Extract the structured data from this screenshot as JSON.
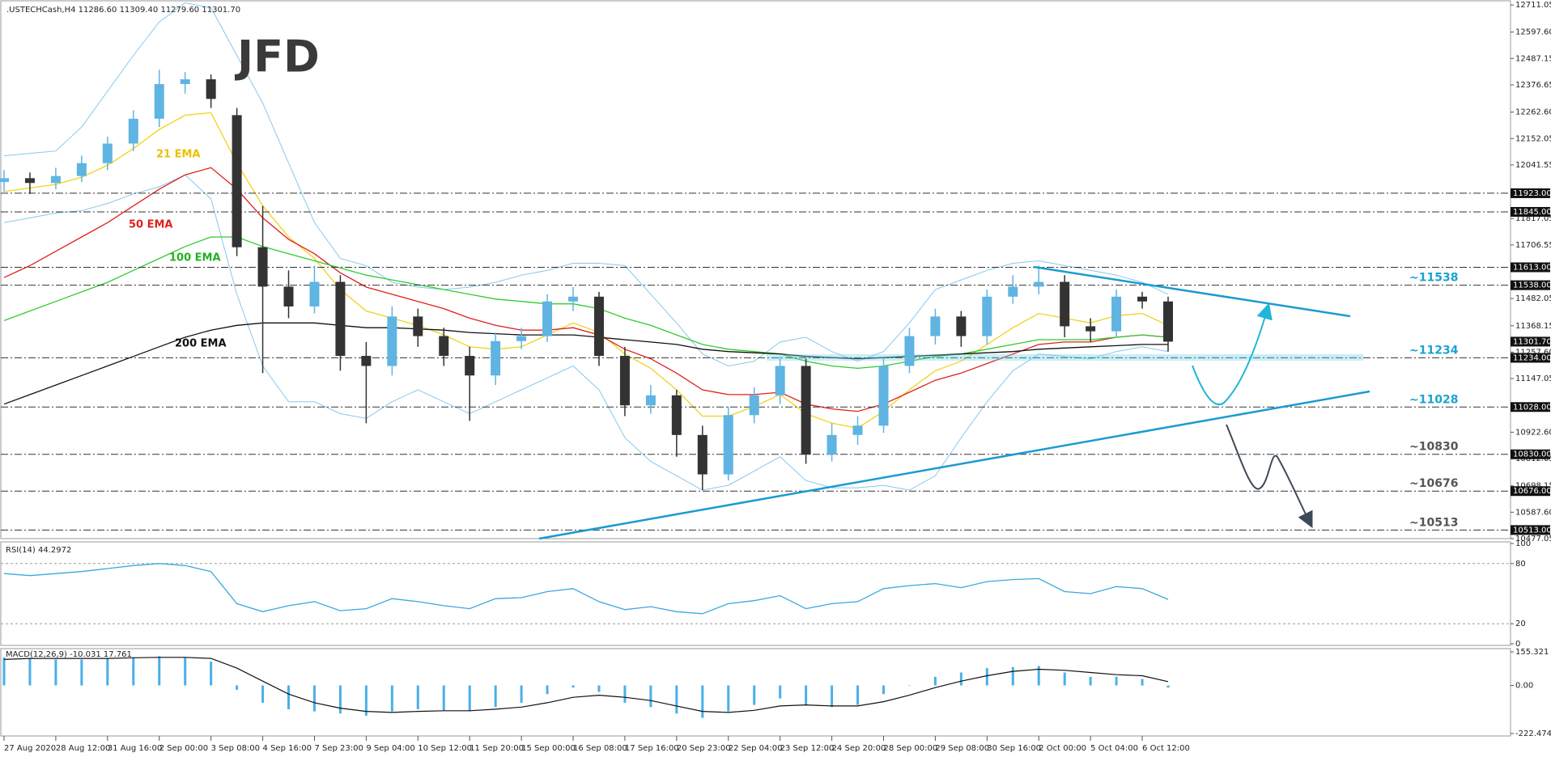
{
  "chart_data": [
    {
      "type": "candlestick",
      "title": ".USTECHCash,H4  11286.60 11309.40 11279.60 11301.70",
      "logo": "JFD",
      "x": [
        "27 Aug 2020",
        null,
        "28 Aug 12:00",
        null,
        "31 Aug 16:00",
        null,
        "2 Sep 00:00",
        null,
        "3 Sep 08:00",
        null,
        "4 Sep 16:00",
        null,
        "7 Sep 23:00",
        null,
        "9 Sep 04:00",
        null,
        "10 Sep 12:00",
        null,
        "11 Sep 20:00",
        null,
        "15 Sep 00:00",
        null,
        "16 Sep 08:00",
        null,
        "17 Sep 16:00",
        null,
        "20 Sep 23:00",
        null,
        "22 Sep 04:00",
        null,
        "23 Sep 12:00",
        null,
        "24 Sep 20:00",
        null,
        "28 Sep 00:00",
        null,
        "29 Sep 08:00",
        null,
        "30 Sep 16:00",
        null,
        "2 Oct 00:00",
        null,
        "5 Oct 04:00",
        null,
        "6 Oct 12:00",
        null
      ],
      "open": [
        11970,
        11986,
        11966,
        11995,
        12049,
        12131,
        12235,
        12380,
        12400,
        12250,
        11697,
        11532,
        11449,
        11552,
        11242,
        11200,
        11407,
        11325,
        11242,
        11160,
        11304,
        11325,
        11470,
        11490,
        11242,
        11035,
        11077,
        10911,
        10746,
        10994,
        11077,
        11200,
        10829,
        10911,
        10950,
        11200,
        11325,
        11407,
        11325,
        11490,
        11532,
        11552,
        11366,
        11345,
        11490,
        11470
      ],
      "high": [
        12020,
        12010,
        12030,
        12080,
        12160,
        12270,
        12440,
        12430,
        12420,
        12280,
        11870,
        11600,
        11620,
        11580,
        11300,
        11450,
        11440,
        11360,
        11280,
        11340,
        11360,
        11500,
        11530,
        11510,
        11280,
        11120,
        11100,
        10950,
        11030,
        11110,
        11240,
        11230,
        10960,
        10990,
        11230,
        11360,
        11440,
        11430,
        11520,
        11580,
        11620,
        11580,
        11400,
        11520,
        11510,
        11490
      ],
      "low": [
        11930,
        11920,
        11940,
        11970,
        12020,
        12100,
        12200,
        12340,
        12280,
        11660,
        11170,
        11400,
        11420,
        11180,
        10960,
        11160,
        11280,
        11200,
        10970,
        11120,
        11270,
        11300,
        11430,
        11200,
        10990,
        11000,
        10820,
        10680,
        10720,
        10960,
        11040,
        10790,
        10800,
        10870,
        10920,
        11170,
        11290,
        11280,
        11290,
        11460,
        11500,
        11320,
        11300,
        11320,
        11440,
        11260
      ],
      "close": [
        11986,
        11966,
        11995,
        12049,
        12131,
        12235,
        12380,
        12400,
        12318,
        11697,
        11532,
        11449,
        11552,
        11242,
        11200,
        11407,
        11325,
        11242,
        11160,
        11304,
        11325,
        11470,
        11490,
        11242,
        11035,
        11077,
        10911,
        10746,
        10994,
        11077,
        11200,
        10829,
        10911,
        10950,
        11200,
        11325,
        11407,
        11325,
        11490,
        11532,
        11552,
        11366,
        11345,
        11490,
        11470,
        11301.7
      ],
      "up_color": "#5fb4e2",
      "down_color": "#333333",
      "bands": {
        "color": "#86c8ee",
        "upper": [
          12080,
          12090,
          12100,
          12200,
          12350,
          12500,
          12640,
          12720,
          12700,
          12500,
          12300,
          12050,
          11800,
          11650,
          11620,
          11550,
          11530,
          11520,
          11530,
          11550,
          11580,
          11600,
          11630,
          11630,
          11620,
          11500,
          11380,
          11250,
          11200,
          11220,
          11300,
          11320,
          11260,
          11220,
          11260,
          11380,
          11520,
          11560,
          11600,
          11630,
          11640,
          11620,
          11600,
          11580,
          11550,
          11500
        ],
        "lower": [
          11800,
          11820,
          11840,
          11850,
          11880,
          11920,
          11950,
          12000,
          11900,
          11500,
          11200,
          11050,
          11050,
          11000,
          10980,
          11050,
          11100,
          11050,
          11000,
          11050,
          11100,
          11150,
          11200,
          11100,
          10900,
          10800,
          10740,
          10680,
          10700,
          10760,
          10820,
          10720,
          10690,
          10690,
          10700,
          10680,
          10740,
          10900,
          11050,
          11180,
          11250,
          11240,
          11230,
          11260,
          11280,
          11260
        ]
      },
      "series": [
        {
          "name": "21 EMA",
          "color": "#f2d21b",
          "values": [
            11930,
            11945,
            11960,
            11990,
            12040,
            12110,
            12190,
            12250,
            12260,
            12050,
            11870,
            11740,
            11650,
            11520,
            11430,
            11400,
            11370,
            11330,
            11280,
            11270,
            11280,
            11330,
            11380,
            11340,
            11250,
            11190,
            11100,
            10990,
            10990,
            11030,
            11080,
            11000,
            10960,
            10940,
            11010,
            11100,
            11180,
            11220,
            11290,
            11360,
            11420,
            11400,
            11380,
            11410,
            11420,
            11370
          ]
        },
        {
          "name": "50 EMA",
          "color": "#e0201b",
          "values": [
            11570,
            11620,
            11680,
            11740,
            11800,
            11870,
            11940,
            12000,
            12030,
            11940,
            11820,
            11730,
            11670,
            11590,
            11530,
            11500,
            11470,
            11440,
            11400,
            11370,
            11350,
            11350,
            11360,
            11330,
            11270,
            11230,
            11170,
            11100,
            11080,
            11080,
            11090,
            11040,
            11020,
            11010,
            11040,
            11090,
            11140,
            11170,
            11210,
            11250,
            11290,
            11300,
            11300,
            11320,
            11330,
            11320
          ]
        },
        {
          "name": "100 EMA",
          "color": "#2fcc2f",
          "values": [
            11390,
            11430,
            11470,
            11510,
            11550,
            11600,
            11650,
            11700,
            11740,
            11740,
            11700,
            11670,
            11640,
            11610,
            11580,
            11560,
            11540,
            11520,
            11500,
            11480,
            11470,
            11460,
            11460,
            11440,
            11400,
            11370,
            11330,
            11290,
            11270,
            11260,
            11250,
            11220,
            11200,
            11190,
            11200,
            11220,
            11240,
            11250,
            11270,
            11290,
            11310,
            11310,
            11310,
            11320,
            11330,
            11320
          ]
        },
        {
          "name": "200 EMA",
          "color": "#111111",
          "values": [
            11040,
            11080,
            11120,
            11160,
            11200,
            11240,
            11280,
            11320,
            11350,
            11370,
            11380,
            11380,
            11380,
            11370,
            11360,
            11360,
            11355,
            11350,
            11340,
            11335,
            11330,
            11330,
            11330,
            11320,
            11310,
            11300,
            11290,
            11270,
            11260,
            11255,
            11250,
            11240,
            11235,
            11230,
            11235,
            11240,
            11245,
            11250,
            11255,
            11260,
            11270,
            11275,
            11280,
            11285,
            11290,
            11290
          ]
        }
      ],
      "levels": [
        {
          "value": 11923,
          "label": "11923.00"
        },
        {
          "value": 11845,
          "label": "11845.00"
        },
        {
          "value": 11613,
          "label": "11613.00"
        },
        {
          "value": 11538,
          "label": "11538.00",
          "note": "~11538",
          "note_color": "#1ba3cf"
        },
        {
          "value": 11234,
          "label": "11234.00",
          "note": "~11234",
          "note_color": "#1ba3cf"
        },
        {
          "value": 11028,
          "label": "11028.00",
          "note": "~11028",
          "note_color": "#1ba3cf"
        },
        {
          "value": 10830,
          "label": "10830.00",
          "note": "~10830",
          "note_color": "#555555"
        },
        {
          "value": 10676,
          "label": "10676.00",
          "note": "~10676",
          "note_color": "#555555"
        },
        {
          "value": 10513,
          "label": "10513.00",
          "note": "~10513",
          "note_color": "#555555"
        }
      ],
      "last": {
        "value": 11301.7,
        "label": "11301.70"
      },
      "ylim": [
        10477,
        12732
      ],
      "yticks": [
        12711.05,
        {
          "value": 12597.6,
          "label": "12597.60"
        },
        12487.15,
        12376.65,
        {
          "value": 12262.6,
          "label": "12262.60"
        },
        12152.05,
        12041.55,
        11817.05,
        11706.55,
        11482.05,
        11368.15,
        {
          "value": 11257.6,
          "label": "11257.60"
        },
        11147.05,
        {
          "value": 10922.6,
          "label": "10922.60"
        },
        10812.05,
        10698.15,
        {
          "value": 10587.6,
          "label": "10587.60"
        },
        10477.05
      ]
    },
    {
      "type": "line",
      "title": "RSI(14) 44.2972",
      "color": "#3aa9e0",
      "values": [
        70,
        68,
        70,
        72,
        75,
        78,
        80,
        78,
        72,
        40,
        32,
        38,
        42,
        33,
        35,
        45,
        42,
        38,
        35,
        45,
        46,
        52,
        55,
        42,
        34,
        37,
        32,
        30,
        40,
        43,
        48,
        35,
        40,
        42,
        55,
        58,
        60,
        56,
        62,
        64,
        65,
        52,
        50,
        57,
        55,
        44.2972
      ],
      "ylim": [
        0,
        100
      ],
      "yticks": [
        100,
        80,
        20,
        0
      ],
      "grid": true
    },
    {
      "type": "macd",
      "title": "MACD(12,26,9) -10.031 17.761",
      "color": "#49b0e6",
      "signal_color": "#111111",
      "values": [
        130,
        125,
        120,
        120,
        125,
        130,
        135,
        130,
        110,
        -20,
        -80,
        -110,
        -120,
        -130,
        -140,
        -120,
        -110,
        -115,
        -120,
        -100,
        -80,
        -40,
        -10,
        -30,
        -80,
        -100,
        -130,
        -150,
        -120,
        -90,
        -60,
        -90,
        -100,
        -90,
        -40,
        0,
        40,
        60,
        80,
        85,
        90,
        60,
        40,
        40,
        30,
        -10.031
      ],
      "signal": [
        120,
        125,
        125,
        125,
        125,
        128,
        130,
        130,
        125,
        80,
        20,
        -40,
        -80,
        -105,
        -120,
        -125,
        -120,
        -117,
        -117,
        -110,
        -100,
        -80,
        -55,
        -45,
        -55,
        -70,
        -95,
        -120,
        -125,
        -115,
        -95,
        -90,
        -95,
        -95,
        -75,
        -45,
        -10,
        20,
        45,
        65,
        75,
        70,
        60,
        50,
        45,
        17.761
      ],
      "ylim": [
        -222.474,
        155.321
      ],
      "yticks": [
        155.321,
        {
          "value": 0,
          "label": "0.00"
        },
        -222.474
      ],
      "grid": false
    }
  ]
}
